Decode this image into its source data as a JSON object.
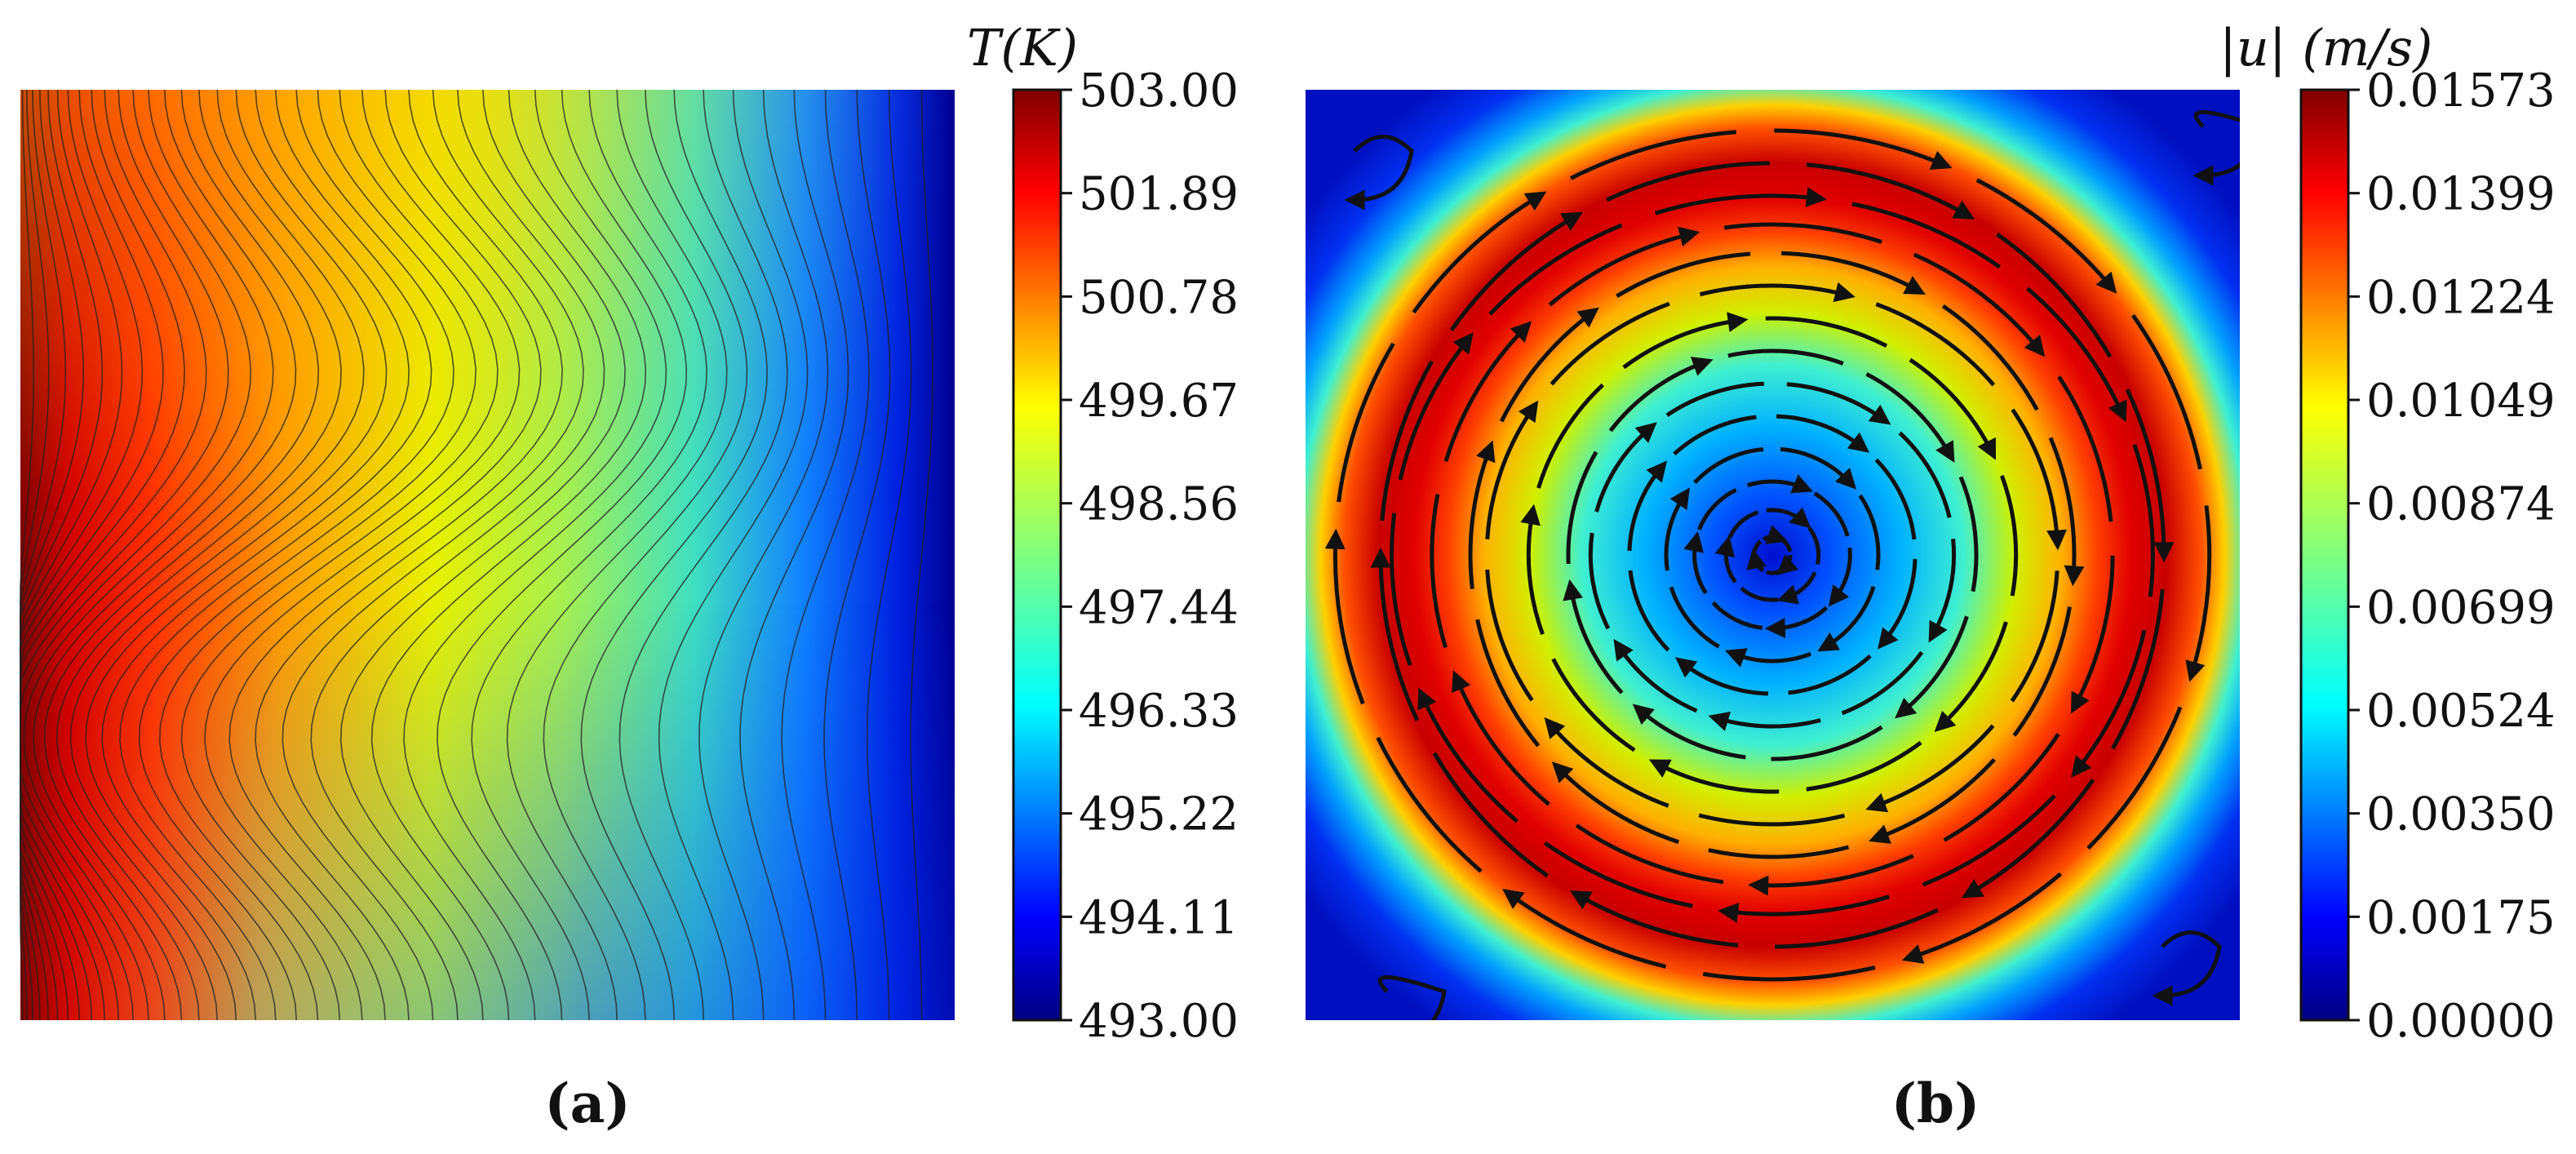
{
  "chart_data": [
    {
      "type": "heatmap",
      "panel_label": "(a)",
      "field": "temperature",
      "colormap": "jet",
      "colorbar": {
        "title": "T(K)",
        "min": 493.0,
        "max": 503.0,
        "ticks": [
          "503.00",
          "501.89",
          "500.78",
          "499.67",
          "498.56",
          "497.44",
          "496.33",
          "495.22",
          "494.11",
          "493.00"
        ]
      },
      "description_values": {
        "hot_wall": "left",
        "cold_wall": "right",
        "contour_levels": 45
      },
      "xlabel": "",
      "ylabel": ""
    },
    {
      "type": "heatmap",
      "panel_label": "(b)",
      "field": "velocity magnitude with streamlines",
      "colormap": "jet",
      "colorbar": {
        "title": "|u| (m/s)",
        "min": 0.0,
        "max": 0.01573,
        "ticks": [
          "0.01573",
          "0.01399",
          "0.01224",
          "0.01049",
          "0.00874",
          "0.00699",
          "0.00524",
          "0.00350",
          "0.00175",
          "0.00000"
        ]
      },
      "description_values": {
        "vortex_center": [
          0.5,
          0.5
        ],
        "rotation": "clockwise",
        "ring_peak_radius": 0.38
      },
      "xlabel": "",
      "ylabel": ""
    }
  ]
}
